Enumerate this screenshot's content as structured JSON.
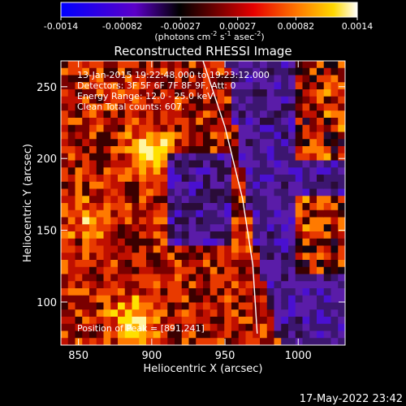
{
  "colorbar": {
    "tick_labels": [
      "-0.0014",
      "-0.00082",
      "-0.00027",
      "0.00027",
      "0.00082",
      "0.0014"
    ],
    "unit_base": "(photons cm",
    "unit_exp1": "-2",
    "unit_mid": " s",
    "unit_exp2": "-1",
    "unit_tail": " asec",
    "unit_exp3": "-2",
    "unit_close": ")",
    "range": [
      -0.0014,
      0.0014
    ]
  },
  "chart_data": {
    "type": "heatmap",
    "title": "Reconstructed RHESSI Image",
    "xlabel": "Heliocentric X (arcsec)",
    "ylabel": "Heliocentric Y (arcsec)",
    "xlim": [
      838,
      1032
    ],
    "ylim": [
      70,
      268
    ],
    "x_ticks": [
      850,
      900,
      950,
      1000
    ],
    "y_ticks": [
      100,
      150,
      200,
      250
    ],
    "limb_curve": [
      [
        935,
        268
      ],
      [
        950,
        222
      ],
      [
        962,
        172
      ],
      [
        969,
        126
      ],
      [
        972,
        78
      ]
    ],
    "peak_position": [
      891,
      241
    ]
  },
  "annotations": {
    "time_range": "13-Jan-2015 19:22:48.000 to 19:23:12.000",
    "detectors": "Detectors: 3F 5F 6F 7F 8F 9F, Att: 0",
    "energy": "Energy Range: 12.0 - 25.0 keV",
    "clean": "Clean     Total counts: 607.",
    "peak": "Position of Peak = [891,241]"
  },
  "footer": {
    "timestamp": "17-May-2022 23:42"
  }
}
